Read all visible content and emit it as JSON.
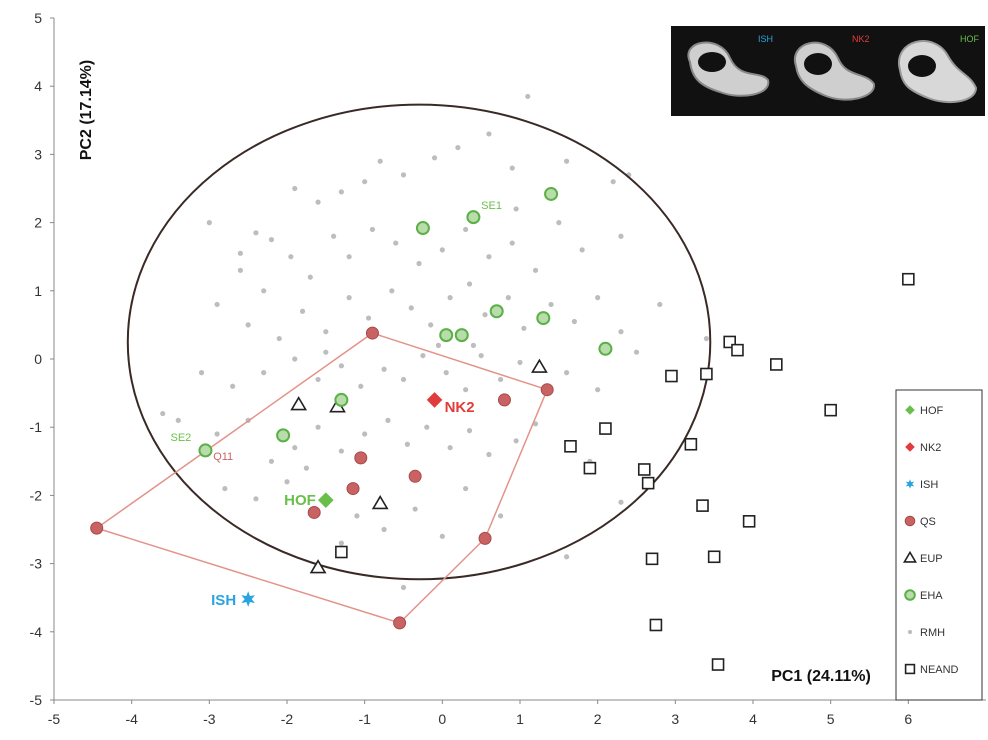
{
  "chart_data": {
    "type": "scatter",
    "xlabel": "PC1 (24.11%)",
    "ylabel": "PC2 (17.14%)",
    "xlim": [
      -5,
      7
    ],
    "ylim": [
      -5,
      5
    ],
    "x_ticks": [
      -5,
      -4,
      -3,
      -2,
      -1,
      0,
      1,
      2,
      3,
      4,
      5,
      6
    ],
    "y_ticks": [
      -5,
      -4,
      -3,
      -2,
      -1,
      0,
      1,
      2,
      3,
      4,
      5
    ],
    "grid": false,
    "legend_position": "right",
    "legend": [
      {
        "label": "HOF",
        "marker": "diamond",
        "color": "#6abf4b"
      },
      {
        "label": "NK2",
        "marker": "diamond",
        "color": "#e23b3b"
      },
      {
        "label": "ISH",
        "marker": "star",
        "color": "#2aa4e0"
      },
      {
        "label": "QS",
        "marker": "circle",
        "color": "#c96363"
      },
      {
        "label": "EUP",
        "marker": "triangle",
        "color": "#222222"
      },
      {
        "label": "EHA",
        "marker": "circle-open",
        "color": "#5bb048"
      },
      {
        "label": "RMH",
        "marker": "dot",
        "color": "#bdbdbd"
      },
      {
        "label": "NEAND",
        "marker": "square-open",
        "color": "#222222"
      }
    ],
    "series": [
      {
        "name": "HOF",
        "color": "#6abf4b",
        "points": [
          [
            -1.5,
            -2.07
          ]
        ],
        "label": "HOF"
      },
      {
        "name": "NK2",
        "color": "#e23b3b",
        "points": [
          [
            -0.1,
            -0.6
          ]
        ],
        "label": "NK2"
      },
      {
        "name": "ISH",
        "color": "#2aa4e0",
        "points": [
          [
            -2.5,
            -3.52
          ]
        ],
        "label": "ISH"
      },
      {
        "name": "QS",
        "color": "#c96363",
        "points": [
          [
            -0.9,
            0.38
          ],
          [
            1.35,
            -0.45
          ],
          [
            0.8,
            -0.6
          ],
          [
            -1.05,
            -1.45
          ],
          [
            -0.35,
            -1.72
          ],
          [
            -1.15,
            -1.9
          ],
          [
            -1.65,
            -2.25
          ],
          [
            0.55,
            -2.63
          ],
          [
            -4.45,
            -2.48
          ],
          [
            -0.55,
            -3.87
          ]
        ]
      },
      {
        "name": "EUP",
        "color": "#222222",
        "points": [
          [
            1.25,
            -0.12
          ],
          [
            -1.85,
            -0.67
          ],
          [
            -1.35,
            -0.7
          ],
          [
            -0.8,
            -2.12
          ],
          [
            -1.6,
            -3.06
          ]
        ]
      },
      {
        "name": "EHA",
        "color": "#5bb048",
        "points": [
          [
            1.4,
            2.42
          ],
          [
            0.4,
            2.08
          ],
          [
            -0.25,
            1.92
          ],
          [
            0.7,
            0.7
          ],
          [
            1.3,
            0.6
          ],
          [
            2.1,
            0.15
          ],
          [
            0.05,
            0.35
          ],
          [
            0.25,
            0.35
          ],
          [
            -1.3,
            -0.6
          ],
          [
            -2.05,
            -1.12
          ],
          [
            -3.05,
            -1.34
          ]
        ]
      },
      {
        "name": "NEAND",
        "color": "#222222",
        "points": [
          [
            6.0,
            1.17
          ],
          [
            3.7,
            0.25
          ],
          [
            3.8,
            0.13
          ],
          [
            4.3,
            -0.08
          ],
          [
            3.4,
            -0.22
          ],
          [
            2.95,
            -0.25
          ],
          [
            5.0,
            -0.75
          ],
          [
            2.1,
            -1.02
          ],
          [
            1.65,
            -1.28
          ],
          [
            3.2,
            -1.25
          ],
          [
            1.9,
            -1.6
          ],
          [
            2.6,
            -1.62
          ],
          [
            2.65,
            -1.82
          ],
          [
            3.35,
            -2.15
          ],
          [
            3.95,
            -2.38
          ],
          [
            -1.3,
            -2.83
          ],
          [
            2.7,
            -2.93
          ],
          [
            3.5,
            -2.9
          ],
          [
            2.75,
            -3.9
          ],
          [
            3.55,
            -4.48
          ]
        ]
      }
    ],
    "rmh_points": [
      [
        -3.0,
        2.0
      ],
      [
        -2.4,
        1.85
      ],
      [
        -2.2,
        1.75
      ],
      [
        -1.9,
        2.5
      ],
      [
        -1.6,
        2.3
      ],
      [
        -1.3,
        2.45
      ],
      [
        -1.0,
        2.6
      ],
      [
        -0.8,
        2.9
      ],
      [
        -0.5,
        2.7
      ],
      [
        -0.1,
        2.95
      ],
      [
        0.2,
        3.1
      ],
      [
        0.6,
        3.3
      ],
      [
        0.9,
        2.8
      ],
      [
        1.1,
        3.85
      ],
      [
        1.6,
        2.9
      ],
      [
        2.2,
        2.6
      ],
      [
        2.4,
        2.7
      ],
      [
        -2.6,
        1.3
      ],
      [
        -2.3,
        1.0
      ],
      [
        -1.95,
        1.5
      ],
      [
        -1.7,
        1.2
      ],
      [
        -1.4,
        1.8
      ],
      [
        -1.2,
        1.5
      ],
      [
        -0.9,
        1.9
      ],
      [
        -0.6,
        1.7
      ],
      [
        -0.3,
        1.4
      ],
      [
        0.0,
        1.6
      ],
      [
        0.3,
        1.9
      ],
      [
        0.6,
        1.5
      ],
      [
        0.9,
        1.7
      ],
      [
        1.2,
        1.3
      ],
      [
        1.5,
        2.0
      ],
      [
        1.8,
        1.6
      ],
      [
        2.3,
        1.8
      ],
      [
        -2.9,
        0.8
      ],
      [
        -2.5,
        0.5
      ],
      [
        -2.1,
        0.3
      ],
      [
        -1.8,
        0.7
      ],
      [
        -1.5,
        0.4
      ],
      [
        -1.2,
        0.9
      ],
      [
        -0.95,
        0.6
      ],
      [
        -0.65,
        1.0
      ],
      [
        -0.4,
        0.75
      ],
      [
        -0.15,
        0.5
      ],
      [
        0.1,
        0.9
      ],
      [
        0.35,
        1.1
      ],
      [
        0.55,
        0.65
      ],
      [
        0.85,
        0.9
      ],
      [
        1.05,
        0.45
      ],
      [
        1.4,
        0.8
      ],
      [
        1.7,
        0.55
      ],
      [
        2.0,
        0.9
      ],
      [
        2.3,
        0.4
      ],
      [
        2.8,
        0.8
      ],
      [
        3.4,
        0.3
      ],
      [
        -3.1,
        -0.2
      ],
      [
        -2.7,
        -0.4
      ],
      [
        -2.3,
        -0.2
      ],
      [
        -1.9,
        0.0
      ],
      [
        -1.6,
        -0.3
      ],
      [
        -1.3,
        -0.1
      ],
      [
        -1.05,
        -0.4
      ],
      [
        -0.75,
        -0.15
      ],
      [
        -0.5,
        -0.3
      ],
      [
        -0.25,
        0.05
      ],
      [
        0.05,
        -0.2
      ],
      [
        0.3,
        -0.45
      ],
      [
        0.5,
        0.05
      ],
      [
        0.75,
        -0.3
      ],
      [
        1.0,
        -0.05
      ],
      [
        1.6,
        -0.2
      ],
      [
        2.0,
        -0.45
      ],
      [
        2.5,
        0.1
      ],
      [
        -3.4,
        -0.9
      ],
      [
        -2.9,
        -1.1
      ],
      [
        -2.5,
        -0.9
      ],
      [
        -2.2,
        -1.5
      ],
      [
        -1.9,
        -1.3
      ],
      [
        -1.6,
        -1.0
      ],
      [
        -1.3,
        -1.35
      ],
      [
        -1.0,
        -1.1
      ],
      [
        -0.7,
        -0.9
      ],
      [
        -0.45,
        -1.25
      ],
      [
        -0.2,
        -1.0
      ],
      [
        0.1,
        -1.3
      ],
      [
        0.35,
        -1.05
      ],
      [
        0.6,
        -1.4
      ],
      [
        0.95,
        -1.2
      ],
      [
        1.2,
        -0.95
      ],
      [
        1.9,
        -1.5
      ],
      [
        2.3,
        -2.1
      ],
      [
        -2.8,
        -1.9
      ],
      [
        -2.4,
        -2.05
      ],
      [
        -2.0,
        -1.8
      ],
      [
        -1.75,
        -1.6
      ],
      [
        -1.1,
        -2.3
      ],
      [
        -0.75,
        -2.5
      ],
      [
        -0.35,
        -2.2
      ],
      [
        0.0,
        -2.6
      ],
      [
        0.3,
        -1.9
      ],
      [
        0.75,
        -2.3
      ],
      [
        1.6,
        -2.9
      ],
      [
        -1.3,
        -2.7
      ],
      [
        -0.5,
        -3.35
      ],
      [
        -3.6,
        -0.8
      ],
      [
        -2.6,
        1.55
      ],
      [
        0.4,
        0.2
      ],
      [
        -0.05,
        0.2
      ],
      [
        -1.5,
        0.1
      ],
      [
        0.95,
        2.2
      ]
    ],
    "ellipse": {
      "center": [
        -0.3,
        0.25
      ],
      "rx": 3.75,
      "ry": 3.48
    },
    "polygon": [
      [
        -0.9,
        0.38
      ],
      [
        1.35,
        -0.45
      ],
      [
        0.55,
        -2.63
      ],
      [
        -0.55,
        -3.87
      ],
      [
        -4.45,
        -2.48
      ]
    ],
    "annotations": [
      {
        "text": "SE1",
        "x": 0.5,
        "y": 2.2,
        "color": "#6abf4b"
      },
      {
        "text": "SE2",
        "x": -3.5,
        "y": -1.2,
        "color": "#6abf4b"
      },
      {
        "text": "Q11",
        "x": -2.95,
        "y": -1.48,
        "color": "#c96363"
      }
    ],
    "inset": {
      "labels": [
        "ISH",
        "NK2",
        "HOF"
      ],
      "colors": [
        "#2aa4e0",
        "#e23b3b",
        "#6abf4b"
      ]
    }
  }
}
